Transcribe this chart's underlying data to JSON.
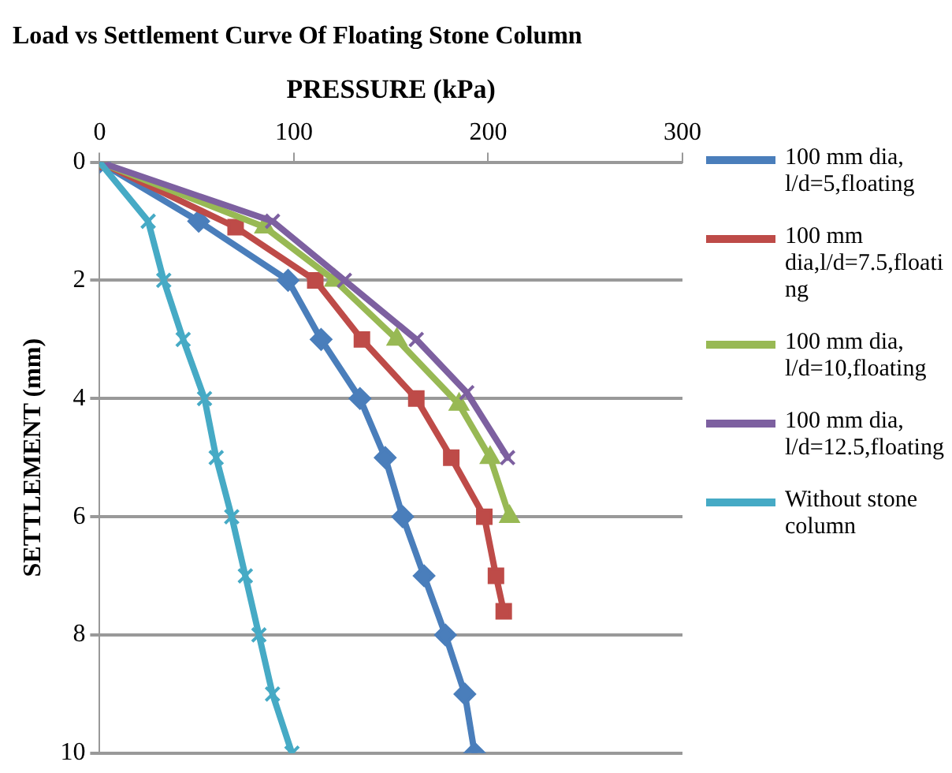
{
  "chart_data": {
    "type": "line",
    "title": "Load vs Settlement Curve Of Floating Stone Column",
    "xlabel": "PRESSURE (kPa)",
    "ylabel": "SETTLEMENT (mm)",
    "xlim": [
      0,
      300
    ],
    "xticks": [
      0,
      100,
      200,
      300
    ],
    "ylim": [
      10,
      0
    ],
    "yticks": [
      0,
      2,
      4,
      6,
      8,
      10
    ],
    "grid": "y",
    "legend": "right",
    "line_style": "solid",
    "series": [
      {
        "name": "100 mm dia, l/d=5,floating",
        "color": "#4a7ebb",
        "marker": "diamond",
        "x": [
          0,
          51,
          97,
          114,
          134,
          147,
          156,
          167,
          178,
          188,
          193
        ],
        "values": [
          0,
          1,
          2,
          3,
          4,
          5,
          6,
          7,
          8,
          9,
          10
        ]
      },
      {
        "name": "100 mm dia,l/d=7.5,floating",
        "color": "#be4b48",
        "marker": "square",
        "x": [
          0,
          70,
          111,
          135,
          163,
          181,
          198,
          204,
          208
        ],
        "values": [
          0,
          1.1,
          2,
          3,
          4,
          5,
          6,
          7,
          7.6
        ]
      },
      {
        "name": "100 mm dia, l/d=10,floating",
        "color": "#98b954",
        "marker": "triangle",
        "x": [
          0,
          85,
          121,
          153,
          185,
          201,
          211
        ],
        "values": [
          0,
          1.1,
          2,
          3,
          4.1,
          5,
          6
        ]
      },
      {
        "name": "100 mm dia, l/d=12.5,floating",
        "color": "#7d60a0",
        "marker": "cross",
        "x": [
          0,
          89,
          126,
          163,
          189,
          210
        ],
        "values": [
          0,
          1,
          2,
          3,
          3.9,
          5
        ]
      },
      {
        "name": "Without stone column",
        "color": "#46aac5",
        "marker": "cross",
        "x": [
          0,
          25,
          33,
          43,
          54,
          60,
          68,
          75,
          82,
          89,
          99
        ],
        "values": [
          0,
          1,
          2,
          3,
          4,
          5,
          6,
          7,
          8,
          9,
          10
        ]
      }
    ]
  }
}
